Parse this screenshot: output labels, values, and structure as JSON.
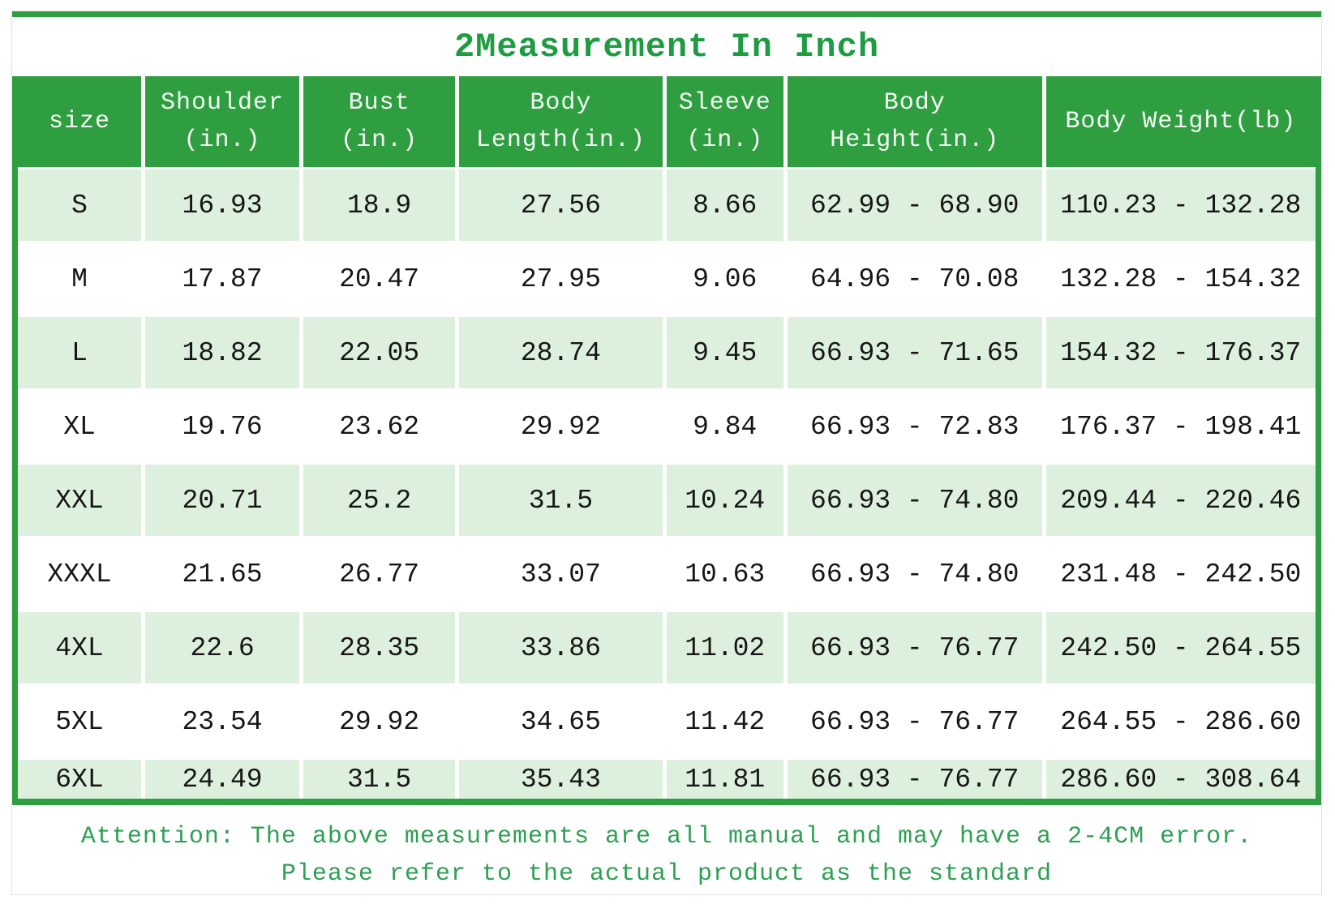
{
  "title": "2Measurement In Inch",
  "colors": {
    "green": "#2f9e41",
    "title_green": "#1e9c41",
    "note_green": "#2da052",
    "light_row": "#dcf0dd",
    "header_text": "#f4fbf4",
    "data_text": "#161616"
  },
  "chart_data": {
    "type": "table",
    "title": "2Measurement In Inch",
    "columns": [
      "size",
      "Shoulder\n(in.)",
      "Bust\n(in.)",
      "Body\nLength(in.)",
      "Sleeve\n(in.)",
      "Body\nHeight(in.)",
      "Body Weight(lb)"
    ],
    "rows": [
      [
        "S",
        "16.93",
        "18.9",
        "27.56",
        "8.66",
        "62.99 - 68.90",
        "110.23 - 132.28"
      ],
      [
        "M",
        "17.87",
        "20.47",
        "27.95",
        "9.06",
        "64.96 - 70.08",
        "132.28 - 154.32"
      ],
      [
        "L",
        "18.82",
        "22.05",
        "28.74",
        "9.45",
        "66.93 - 71.65",
        "154.32 - 176.37"
      ],
      [
        "XL",
        "19.76",
        "23.62",
        "29.92",
        "9.84",
        "66.93 - 72.83",
        "176.37 - 198.41"
      ],
      [
        "XXL",
        "20.71",
        "25.2",
        "31.5",
        "10.24",
        "66.93 - 74.80",
        "209.44 - 220.46"
      ],
      [
        "XXXL",
        "21.65",
        "26.77",
        "33.07",
        "10.63",
        "66.93 - 74.80",
        "231.48 - 242.50"
      ],
      [
        "4XL",
        "22.6",
        "28.35",
        "33.86",
        "11.02",
        "66.93 - 76.77",
        "242.50 - 264.55"
      ],
      [
        "5XL",
        "23.54",
        "29.92",
        "34.65",
        "11.42",
        "66.93 - 76.77",
        "264.55 - 286.60"
      ],
      [
        "6XL",
        "24.49",
        "31.5",
        "35.43",
        "11.81",
        "66.93 - 76.77",
        "286.60 - 308.64"
      ]
    ]
  },
  "note": {
    "line1": "Attention: The above measurements are all manual and may have a 2-4CM error.",
    "line2": "Please refer to the actual product as the standard"
  }
}
